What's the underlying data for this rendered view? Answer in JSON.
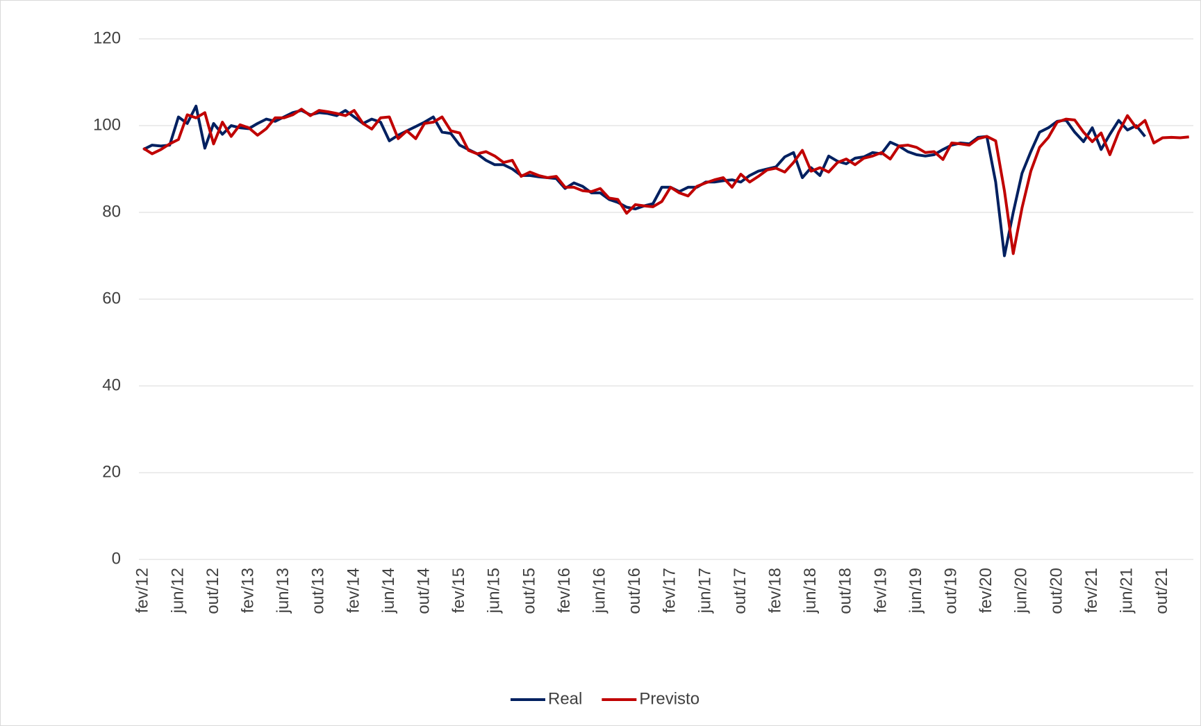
{
  "chart_data": {
    "type": "line",
    "categories": [
      "fev/12",
      null,
      null,
      null,
      "jun/12",
      null,
      null,
      null,
      "out/12",
      null,
      null,
      null,
      "fev/13",
      null,
      null,
      null,
      "jun/13",
      null,
      null,
      null,
      "out/13",
      null,
      null,
      null,
      "fev/14",
      null,
      null,
      null,
      "jun/14",
      null,
      null,
      null,
      "out/14",
      null,
      null,
      null,
      "fev/15",
      null,
      null,
      null,
      "jun/15",
      null,
      null,
      null,
      "out/15",
      null,
      null,
      null,
      "fev/16",
      null,
      null,
      null,
      "jun/16",
      null,
      null,
      null,
      "out/16",
      null,
      null,
      null,
      "fev/17",
      null,
      null,
      null,
      "jun/17",
      null,
      null,
      null,
      "out/17",
      null,
      null,
      null,
      "fev/18",
      null,
      null,
      null,
      "jun/18",
      null,
      null,
      null,
      "out/18",
      null,
      null,
      null,
      "fev/19",
      null,
      null,
      null,
      "jun/19",
      null,
      null,
      null,
      "out/19",
      null,
      null,
      null,
      "fev/20",
      null,
      null,
      null,
      "jun/20",
      null,
      null,
      null,
      "out/20",
      null,
      null,
      null,
      "fev/21",
      null,
      null,
      null,
      "jun/21",
      null,
      null,
      null,
      "out/21",
      null,
      null,
      null
    ],
    "series": [
      {
        "name": "Real",
        "color": "#002060",
        "values": [
          94.5,
          95.5,
          95.3,
          95.5,
          102,
          100.5,
          104.5,
          94.8,
          100.5,
          98,
          100,
          99.5,
          99.3,
          100.5,
          101.5,
          101,
          102,
          103,
          103.5,
          102.5,
          103,
          102.8,
          102.3,
          103.5,
          102,
          100.5,
          101.5,
          100.8,
          96.5,
          97.8,
          98.8,
          99.8,
          100.8,
          102,
          98.5,
          98.2,
          95.5,
          94.5,
          93.5,
          92,
          91,
          91,
          90,
          88.5,
          88.5,
          88.2,
          88,
          87.8,
          85.5,
          86.8,
          86,
          84.5,
          84.5,
          83,
          82.3,
          81.2,
          80.8,
          81.5,
          82,
          85.8,
          85.8,
          84.8,
          85.8,
          85.8,
          87,
          87,
          87.3,
          87.5,
          87,
          88.5,
          89.5,
          90,
          90.5,
          92.8,
          93.8,
          88,
          90.3,
          88.5,
          93,
          91.8,
          91.2,
          92.5,
          92.8,
          93.8,
          93.5,
          96.2,
          95.3,
          94,
          93.3,
          93,
          93.3,
          94.5,
          95.5,
          96,
          95.8,
          97.3,
          97.5,
          87,
          70,
          80,
          89,
          94,
          98.5,
          99.5,
          101,
          101.3,
          98.5,
          96.3,
          99.5,
          94.5,
          98,
          101.2,
          99,
          100,
          97.5,
          null,
          null,
          null,
          null,
          null
        ]
      },
      {
        "name": "Previsto",
        "color": "#c00000",
        "values": [
          94.8,
          93.5,
          94.5,
          95.8,
          96.8,
          102.5,
          101.8,
          103,
          95.8,
          100.8,
          97.5,
          100.2,
          99.5,
          97.8,
          99.3,
          101.8,
          101.8,
          102.5,
          103.8,
          102.3,
          103.5,
          103.2,
          102.8,
          102.3,
          103.5,
          100.5,
          99.2,
          101.8,
          102,
          97,
          98.8,
          97,
          100.5,
          100.8,
          102,
          98.8,
          98.3,
          94.3,
          93.5,
          94,
          93,
          91.5,
          92,
          88.3,
          89.3,
          88.5,
          88,
          88.3,
          85.8,
          85.8,
          85,
          84.8,
          85.5,
          83.3,
          83,
          79.8,
          81.8,
          81.5,
          81.3,
          82.5,
          85.8,
          84.5,
          83.8,
          86,
          86.8,
          87.5,
          88,
          85.8,
          88.8,
          87,
          88.3,
          89.8,
          90.2,
          89.3,
          91.5,
          94.3,
          89.5,
          90.3,
          89.3,
          91.5,
          92.3,
          91,
          92.5,
          93,
          93.8,
          92.3,
          95.3,
          95.5,
          95,
          93.8,
          94,
          92.2,
          96,
          95.8,
          95.5,
          97,
          97.5,
          96.5,
          85,
          70.5,
          81,
          89.5,
          95,
          97.3,
          100.8,
          101.5,
          101.3,
          98.5,
          96.3,
          98.3,
          93.3,
          98.5,
          102.3,
          99.5,
          101.2,
          96,
          97.2,
          97.3,
          97.2,
          97.4
        ]
      }
    ],
    "ylim": [
      0,
      120
    ],
    "yticks": [
      0,
      20,
      40,
      60,
      80,
      100,
      120
    ],
    "grid": true,
    "legend": "bottom"
  }
}
